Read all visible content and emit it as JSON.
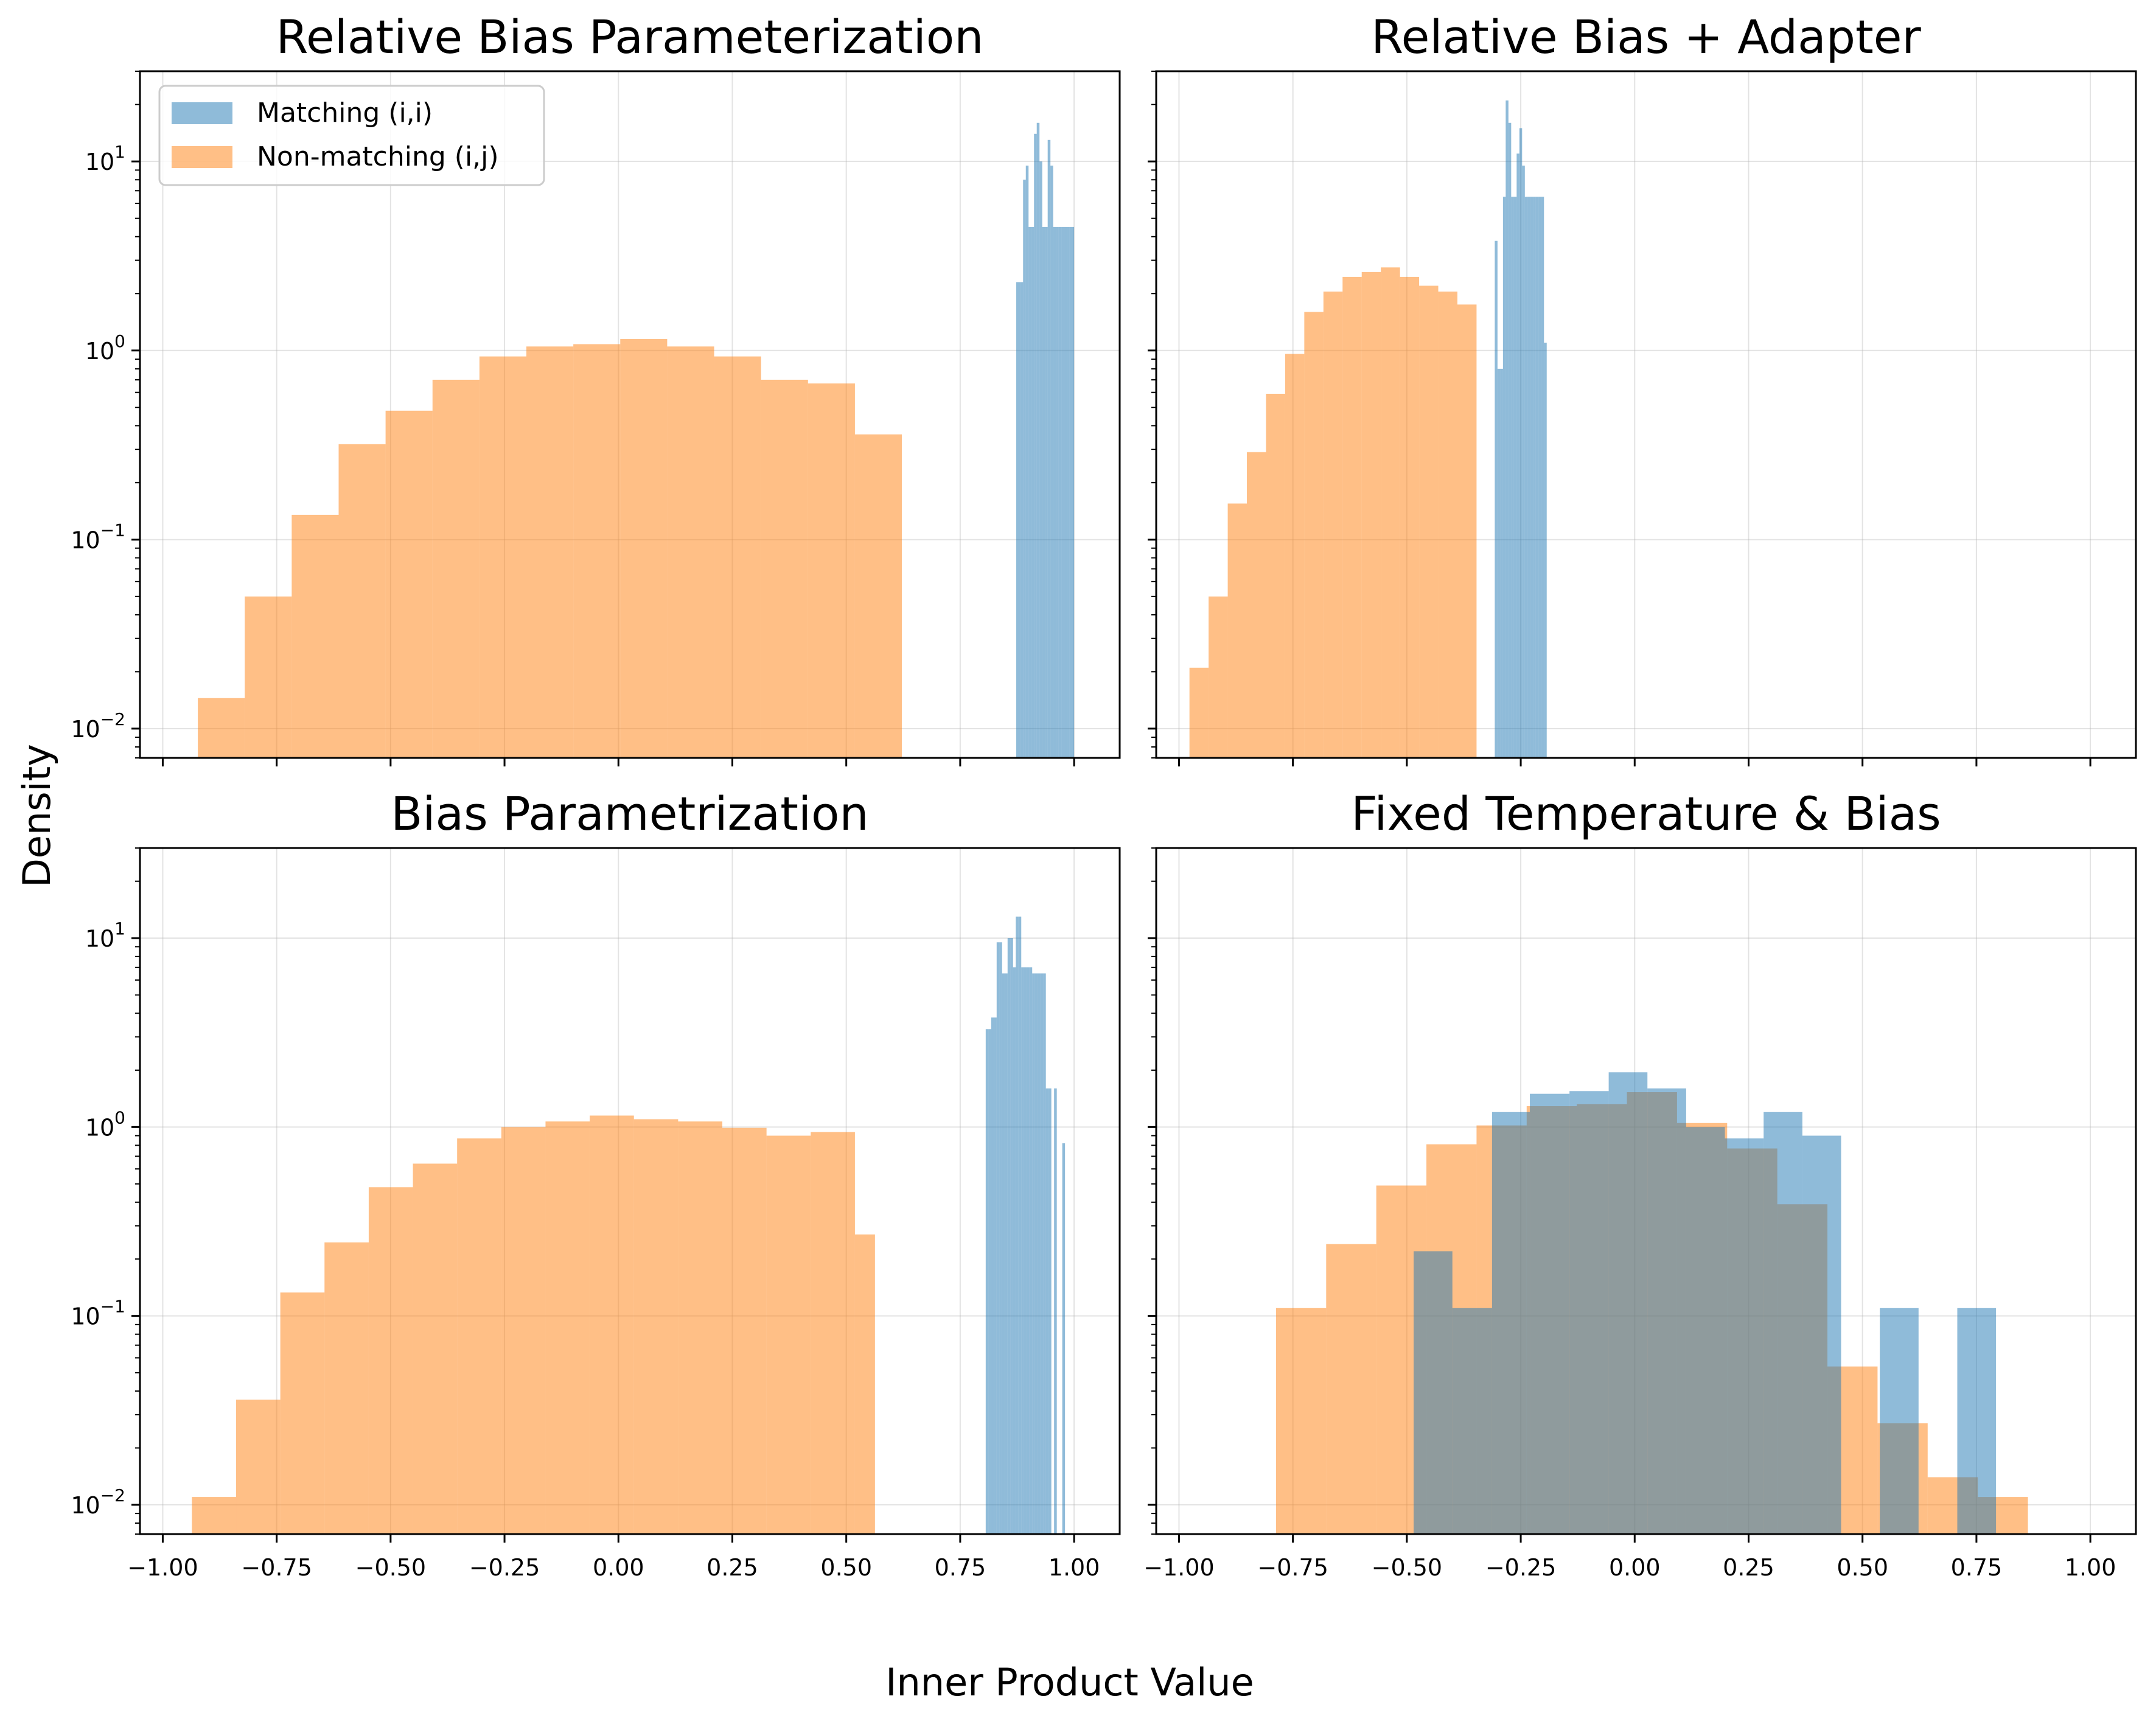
{
  "figure": {
    "ylabel": "Density",
    "xlabel": "Inner Product Value",
    "legend": {
      "location": "upper-left of first panel",
      "entries": [
        "Matching (i,i)",
        "Non-matching (i,j)"
      ]
    },
    "colors": {
      "matching": "#1f77b4",
      "non_matching": "#ff7f0e",
      "bar_alpha": 0.5,
      "grid": "#b0b0b0"
    },
    "shared": {
      "xlim": [
        -1.05,
        1.1
      ],
      "ylim": [
        0.007,
        30
      ],
      "yscale": "log",
      "xticks": [
        -1.0,
        -0.75,
        -0.5,
        -0.25,
        0.0,
        0.25,
        0.5,
        0.75,
        1.0
      ],
      "xtick_labels": [
        "−1.00",
        "−0.75",
        "−0.50",
        "−0.25",
        "0.00",
        "0.25",
        "0.50",
        "0.75",
        "1.00"
      ],
      "yticks": [
        0.01,
        0.1,
        1,
        10
      ],
      "grid": true
    }
  },
  "chart_data": [
    {
      "type": "bar",
      "title": "Relative Bias Parameterization",
      "series": [
        {
          "name": "Non-matching (i,j)",
          "edges": [
            -0.923,
            -0.82,
            -0.717,
            -0.614,
            -0.511,
            -0.408,
            -0.305,
            -0.202,
            -0.099,
            0.004,
            0.107,
            0.21,
            0.313,
            0.416,
            0.519,
            0.622
          ],
          "values": [
            0.0145,
            0.05,
            0.135,
            0.32,
            0.48,
            0.7,
            0.93,
            1.05,
            1.08,
            1.15,
            1.05,
            0.93,
            0.7,
            0.67,
            0.36
          ]
        },
        {
          "name": "Matching (i,i)",
          "edges": [
            0.873,
            0.882,
            0.888,
            0.894,
            0.9,
            0.906,
            0.912,
            0.918,
            0.924,
            0.93,
            0.936,
            0.942,
            0.948,
            0.954,
            0.96,
            0.966,
            0.972,
            0.978,
            0.984,
            0.99,
            1.0
          ],
          "values": [
            2.3,
            2.3,
            8,
            9.5,
            4.5,
            4.5,
            14,
            16,
            10,
            4.5,
            4.5,
            13,
            9.5,
            4.5,
            4.5,
            4.5,
            4.5,
            4.5,
            4.5,
            4.5
          ]
        }
      ]
    },
    {
      "type": "bar",
      "title": "Relative Bias + Adapter",
      "series": [
        {
          "name": "Non-matching (i,j)",
          "edges": [
            -0.977,
            -0.935,
            -0.893,
            -0.851,
            -0.809,
            -0.767,
            -0.725,
            -0.683,
            -0.641,
            -0.599,
            -0.557,
            -0.515,
            -0.473,
            -0.431,
            -0.389,
            -0.347
          ],
          "values": [
            0.021,
            0.05,
            0.155,
            0.29,
            0.59,
            0.96,
            1.6,
            2.05,
            2.45,
            2.6,
            2.75,
            2.45,
            2.2,
            2.05,
            1.75,
            0.88
          ]
        },
        {
          "name": "Matching (i,i)",
          "edges": [
            -0.307,
            -0.301,
            -0.295,
            -0.289,
            -0.283,
            -0.277,
            -0.271,
            -0.265,
            -0.259,
            -0.253,
            -0.247,
            -0.241,
            -0.235,
            -0.229,
            -0.223,
            -0.217,
            -0.211,
            -0.205,
            -0.199,
            -0.193
          ],
          "values": [
            3.8,
            0.8,
            0.8,
            6.5,
            21,
            16,
            6.5,
            6.5,
            11,
            15,
            9.5,
            6.5,
            6.5,
            6.5,
            6.5,
            6.5,
            6.5,
            6.5,
            1.1
          ]
        }
      ]
    },
    {
      "type": "bar",
      "title": "Bias Parametrization",
      "series": [
        {
          "name": "Non-matching (i,j)",
          "edges": [
            -0.936,
            -0.839,
            -0.742,
            -0.645,
            -0.548,
            -0.451,
            -0.354,
            -0.257,
            -0.16,
            -0.063,
            0.034,
            0.131,
            0.228,
            0.325,
            0.422,
            0.519,
            0.563
          ],
          "values": [
            0.011,
            0.036,
            0.133,
            0.245,
            0.48,
            0.64,
            0.87,
            1.0,
            1.07,
            1.15,
            1.1,
            1.07,
            0.99,
            0.9,
            0.94,
            0.27
          ]
        },
        {
          "name": "Matching (i,i)",
          "edges": [
            0.806,
            0.812,
            0.818,
            0.824,
            0.83,
            0.836,
            0.842,
            0.848,
            0.854,
            0.86,
            0.866,
            0.872,
            0.878,
            0.884,
            0.89,
            0.896,
            0.902,
            0.908,
            0.914,
            0.92,
            0.926,
            0.932,
            0.938,
            0.944,
            0.95,
            0.956,
            0.962,
            0.968,
            0.974,
            0.98
          ],
          "values": [
            3.3,
            3.3,
            3.8,
            3.8,
            9.5,
            9.5,
            6.5,
            6.5,
            10,
            10,
            7,
            13,
            13,
            7,
            7,
            7,
            7,
            6.5,
            6.5,
            6.5,
            6.5,
            6.5,
            1.6,
            1.6,
            0,
            1.6,
            0,
            0,
            0.82
          ]
        }
      ]
    },
    {
      "type": "bar",
      "title": "Fixed Temperature & Bias",
      "series": [
        {
          "name": "Non-matching (i,j)",
          "edges": [
            -0.787,
            -0.677,
            -0.567,
            -0.457,
            -0.347,
            -0.237,
            -0.127,
            -0.017,
            0.093,
            0.203,
            0.313,
            0.423,
            0.533,
            0.643,
            0.753,
            0.863
          ],
          "values": [
            0.11,
            0.24,
            0.49,
            0.81,
            1.02,
            1.29,
            1.32,
            1.53,
            1.05,
            0.77,
            0.39,
            0.054,
            0.027,
            0.014,
            0.011
          ]
        },
        {
          "name": "Matching (i,i)",
          "edges": [
            -0.485,
            -0.4,
            -0.313,
            -0.23,
            -0.143,
            -0.057,
            0.028,
            0.113,
            0.198,
            0.283,
            0.368,
            0.453,
            0.538,
            0.623,
            0.708,
            0.793,
            0.878
          ],
          "values": [
            0.22,
            0.11,
            1.2,
            1.5,
            1.55,
            1.95,
            1.6,
            1.0,
            0.87,
            1.2,
            0.9,
            0,
            0.11,
            0,
            0.11,
            0
          ]
        }
      ]
    }
  ]
}
